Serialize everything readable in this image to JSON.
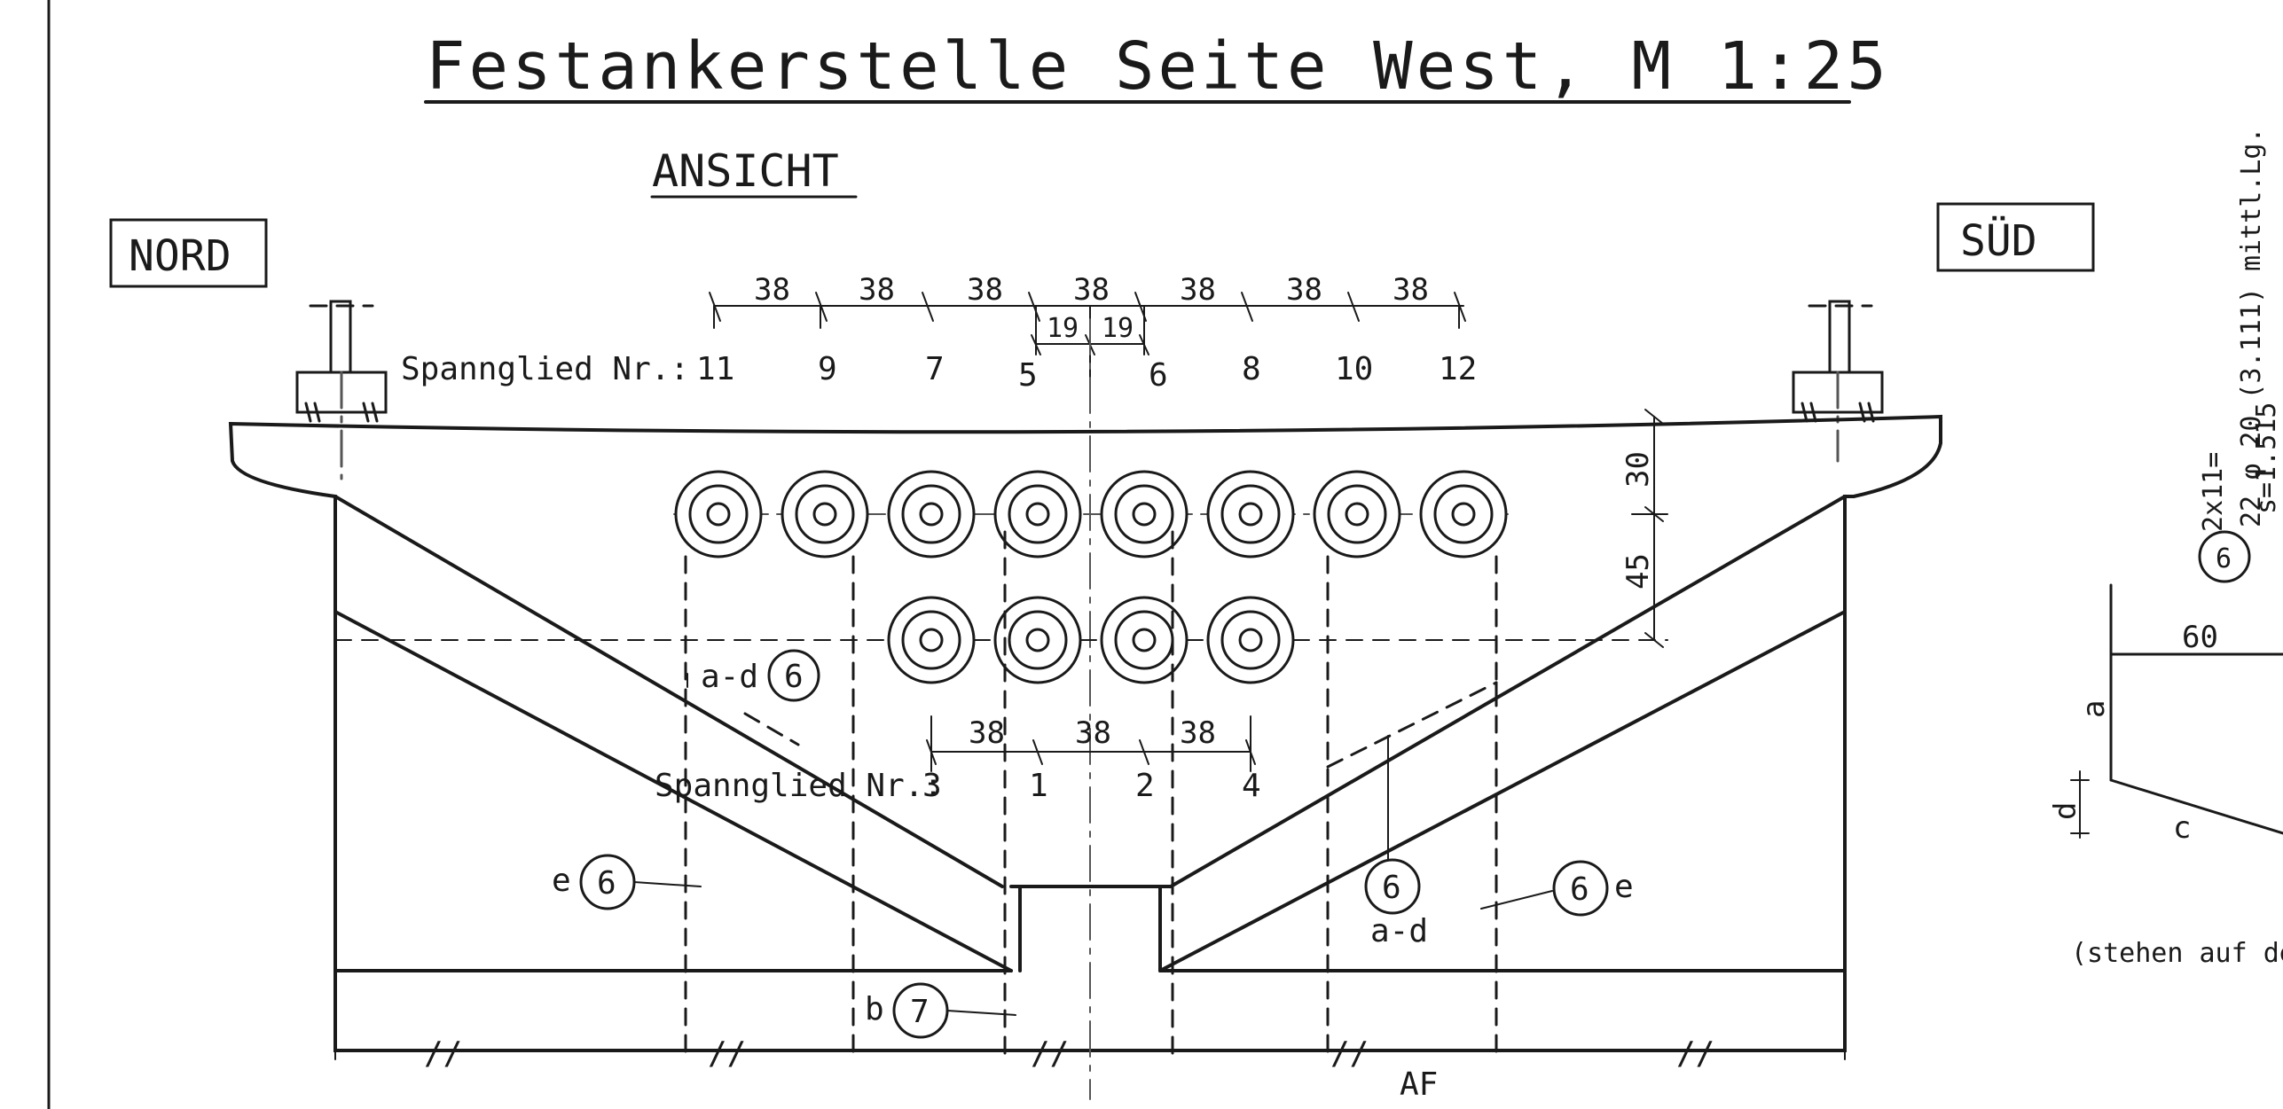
{
  "title": "Festankerstelle Seite West, M 1:25",
  "subtitle": "ANSICHT",
  "side_left": "NORD",
  "side_right": "SÜD",
  "upper_row": {
    "label": "Spannglied Nr.:",
    "tendon_numbers": [
      "11",
      "9",
      "7",
      "5",
      "6",
      "8",
      "10",
      "12"
    ],
    "spacings": [
      "38",
      "38",
      "38",
      "38",
      "38",
      "38",
      "38"
    ],
    "center_spacings": [
      "19",
      "19"
    ]
  },
  "lower_row": {
    "label": "Spannglied Nr.:",
    "tendon_numbers": [
      "3",
      "1",
      "2",
      "4"
    ],
    "spacings": [
      "38",
      "38",
      "38"
    ]
  },
  "vertical_dims": [
    "30",
    "45"
  ],
  "bar_marks": {
    "six": "6",
    "seven": "7",
    "a_d": "a-d",
    "e": "e",
    "b": "b"
  },
  "axis_label": "AF",
  "side_note": {
    "count": "2x11=",
    "mark": "6",
    "bars": "22 φ 20 (3.111) mittl.Lg.",
    "spacing": "s=1.515",
    "dim_60": "60",
    "a": "a",
    "c": "c",
    "d": "d",
    "footnote": "(stehen auf der"
  },
  "break_mark": "//"
}
